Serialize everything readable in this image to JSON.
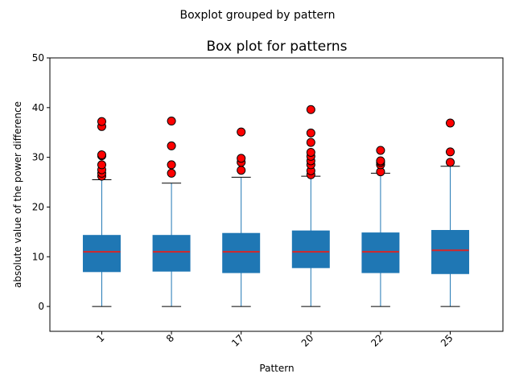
{
  "chart_data": {
    "type": "boxplot",
    "suptitle": "Boxplot grouped by pattern",
    "title": "Box plot for patterns",
    "xlabel": "Pattern",
    "ylabel": "absolute value of the power difference",
    "ylim": [
      -5,
      50
    ],
    "yticks": [
      0,
      10,
      20,
      30,
      40,
      50
    ],
    "categories": [
      "1",
      "8",
      "17",
      "20",
      "22",
      "25"
    ],
    "box_color": "#1f77b4",
    "median_color": "#d62728",
    "flier_color": "#ff0000",
    "boxes": [
      {
        "category": "1",
        "whisker_low": 0,
        "q1": 7.0,
        "median": 11.0,
        "q3": 14.3,
        "whisker_high": 25.5,
        "outliers": [
          26.2,
          26.8,
          27.5,
          28.5,
          30.3,
          30.5,
          36.2,
          37.2
        ]
      },
      {
        "category": "8",
        "whisker_low": 0,
        "q1": 7.1,
        "median": 11.0,
        "q3": 14.3,
        "whisker_high": 24.8,
        "outliers": [
          26.8,
          28.5,
          32.3,
          37.3
        ]
      },
      {
        "category": "17",
        "whisker_low": 0,
        "q1": 6.8,
        "median": 11.0,
        "q3": 14.7,
        "whisker_high": 26.0,
        "outliers": [
          27.4,
          29.0,
          29.8,
          35.1
        ]
      },
      {
        "category": "20",
        "whisker_low": 0,
        "q1": 7.8,
        "median": 11.0,
        "q3": 15.2,
        "whisker_high": 26.2,
        "outliers": [
          26.5,
          27.3,
          28.5,
          29.3,
          30.2,
          31.0,
          33.0,
          34.9,
          39.6
        ]
      },
      {
        "category": "22",
        "whisker_low": 0,
        "q1": 6.8,
        "median": 11.0,
        "q3": 14.8,
        "whisker_high": 26.8,
        "outliers": [
          27.1,
          28.5,
          29.0,
          29.3,
          31.4
        ]
      },
      {
        "category": "25",
        "whisker_low": 0,
        "q1": 6.6,
        "median": 11.3,
        "q3": 15.3,
        "whisker_high": 28.2,
        "outliers": [
          29.0,
          31.1,
          36.9
        ]
      }
    ]
  }
}
